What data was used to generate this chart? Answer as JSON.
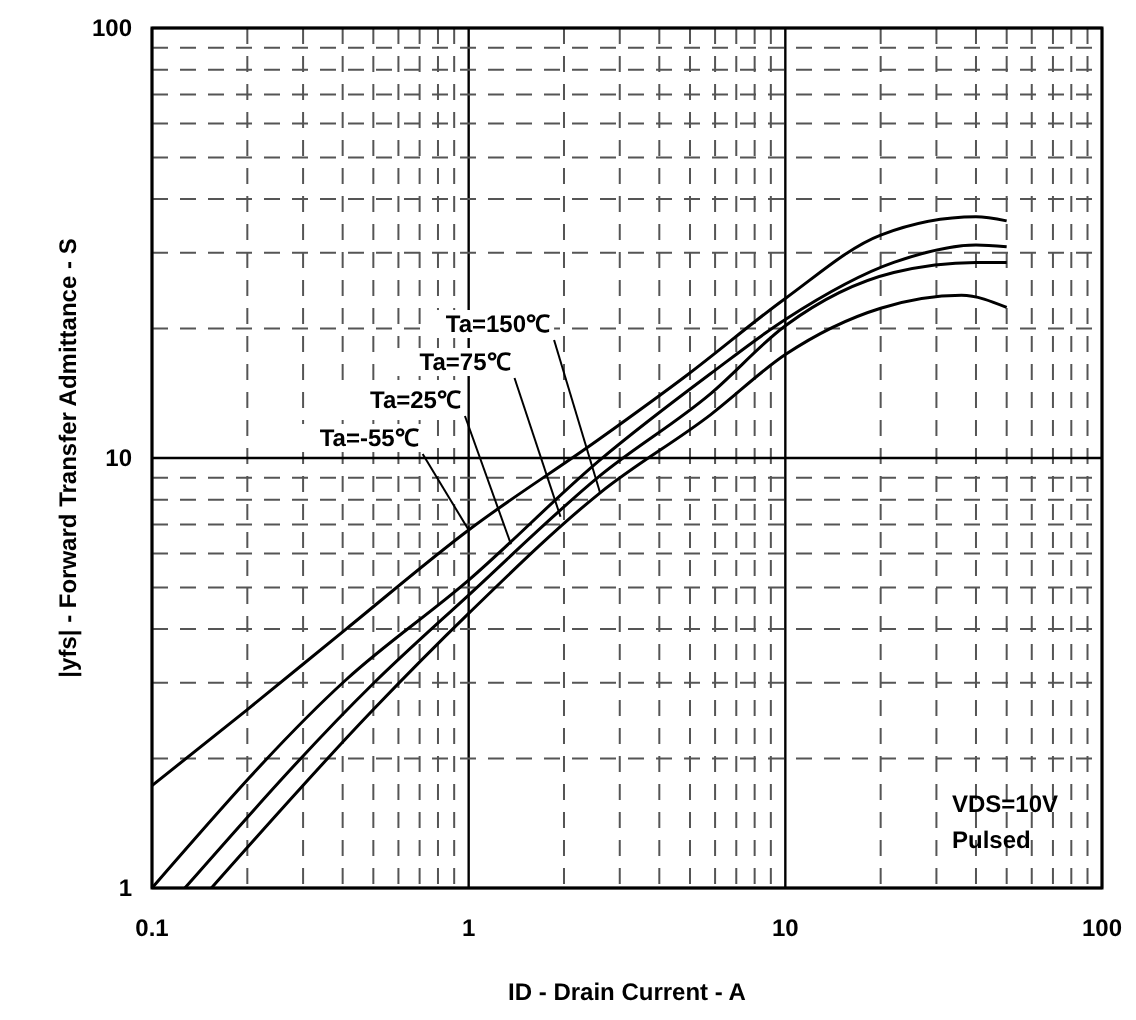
{
  "chart_data": {
    "type": "line",
    "xlabel": "ID - Drain Current - A",
    "ylabel": "|yfs| - Forward Transfer Admittance - S",
    "log": "xy",
    "grid": true,
    "line_style": "solid",
    "xlim": [
      0.1,
      100
    ],
    "ylim": [
      1,
      100
    ],
    "xticks": [
      0.1,
      {
        "value": 0.2,
        "label": null
      },
      {
        "value": 0.3,
        "label": null
      },
      {
        "value": 0.4,
        "label": null
      },
      {
        "value": 0.5,
        "label": null
      },
      {
        "value": 0.6,
        "label": null
      },
      {
        "value": 0.7,
        "label": null
      },
      {
        "value": 0.8,
        "label": null
      },
      {
        "value": 0.9,
        "label": null
      },
      1,
      {
        "value": 2,
        "label": null
      },
      {
        "value": 3,
        "label": null
      },
      {
        "value": 4,
        "label": null
      },
      {
        "value": 5,
        "label": null
      },
      {
        "value": 6,
        "label": null
      },
      {
        "value": 7,
        "label": null
      },
      {
        "value": 8,
        "label": null
      },
      {
        "value": 9,
        "label": null
      },
      10,
      {
        "value": 20,
        "label": null
      },
      {
        "value": 30,
        "label": null
      },
      {
        "value": 40,
        "label": null
      },
      {
        "value": 50,
        "label": null
      },
      {
        "value": 60,
        "label": null
      },
      {
        "value": 70,
        "label": null
      },
      {
        "value": 80,
        "label": null
      },
      {
        "value": 90,
        "label": null
      },
      100
    ],
    "yticks": [
      1,
      {
        "value": 2,
        "label": null
      },
      {
        "value": 3,
        "label": null
      },
      {
        "value": 4,
        "label": null
      },
      {
        "value": 5,
        "label": null
      },
      {
        "value": 6,
        "label": null
      },
      {
        "value": 7,
        "label": null
      },
      {
        "value": 8,
        "label": null
      },
      {
        "value": 9,
        "label": null
      },
      10,
      {
        "value": 20,
        "label": null
      },
      {
        "value": 30,
        "label": null
      },
      {
        "value": 40,
        "label": null
      },
      {
        "value": 50,
        "label": null
      },
      {
        "value": 60,
        "label": null
      },
      {
        "value": 70,
        "label": null
      },
      {
        "value": 80,
        "label": null
      },
      {
        "value": 90,
        "label": null
      },
      100
    ],
    "series": [
      {
        "color": "#000000",
        "x": [
          0.1,
          0.2,
          0.41,
          1,
          2.6,
          4.9,
          10,
          20,
          40,
          50
        ],
        "values": [
          1.73,
          2.6,
          4.0,
          6.8,
          11.1,
          15.6,
          23.5,
          33,
          36.4,
          35.6
        ]
      },
      {
        "color": "#000000",
        "x": [
          0.1,
          0.41,
          1,
          2.6,
          5.8,
          10,
          22,
          40,
          50
        ],
        "values": [
          1,
          3.05,
          5.2,
          9.9,
          15.7,
          21,
          28.5,
          31.3,
          31
        ]
      },
      {
        "color": "#000000",
        "x": [
          0.127,
          0.5,
          1,
          2.6,
          5.8,
          10,
          22,
          40,
          50
        ],
        "values": [
          1,
          2.99,
          4.8,
          9.1,
          14.1,
          20.3,
          27,
          28.5,
          28.5
        ]
      },
      {
        "color": "#000000",
        "x": [
          0.154,
          0.5,
          1,
          2.6,
          5.8,
          10,
          20,
          36,
          50
        ],
        "values": [
          1,
          2.6,
          4.35,
          8.3,
          12.6,
          17.4,
          22.3,
          23.9,
          22.4
        ]
      }
    ],
    "annotations": [
      {
        "text": "Ta=-55℃",
        "x": 1,
        "y": 6.8
      },
      {
        "text": "Ta=25℃",
        "x": 1.36,
        "y": 6.3
      },
      {
        "text": "Ta=75℃",
        "x": 1.95,
        "y": 7.3
      },
      {
        "text": "Ta=150℃",
        "x": 2.6,
        "y": 8.3
      },
      "VDS=10V",
      "Pulsed"
    ]
  }
}
